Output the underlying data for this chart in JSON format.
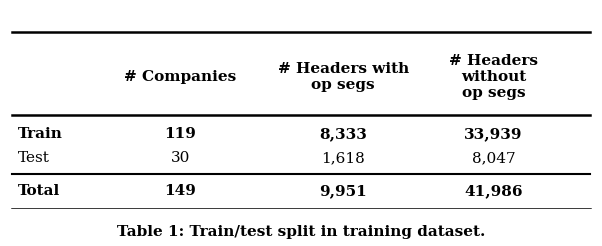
{
  "col_headers": [
    "",
    "# Companies",
    "# Headers with\nop segs",
    "# Headers\nwithout\nop segs"
  ],
  "rows": [
    [
      "Train",
      "119",
      "8,333",
      "33,939"
    ],
    [
      "Test",
      "30",
      "1,618",
      "8,047"
    ],
    [
      "Total",
      "149",
      "9,951",
      "41,986"
    ]
  ],
  "bold_data_rows": [
    0,
    2
  ],
  "caption": "Table 1: Train/test split in training dataset.",
  "background_color": "#ffffff",
  "text_color": "#000000",
  "font_size": 11,
  "caption_font_size": 11
}
